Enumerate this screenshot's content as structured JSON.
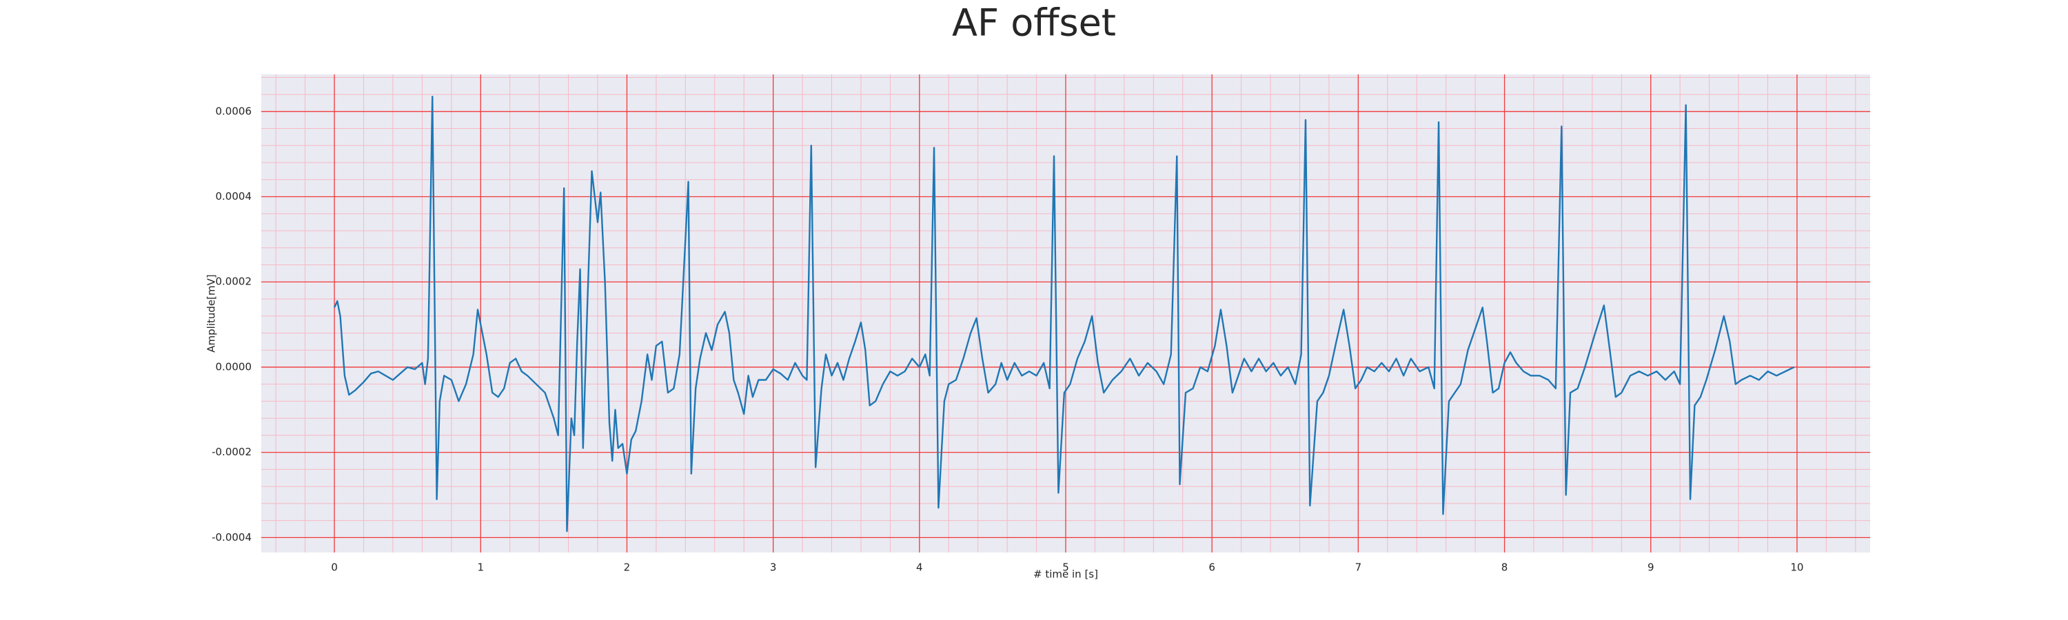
{
  "chart_data": {
    "type": "line",
    "title": "AF offset",
    "xlabel": "# time in [s]",
    "ylabel": "Amplitude[mV]",
    "color": "#1f77b4",
    "background": "#eaeaf2",
    "grid": true,
    "major_grid_color": "#f03a3a",
    "minor_grid_color": "#f6b8c4",
    "minor_xstep": 0.2,
    "minor_ystep": 4e-05,
    "xlim": [
      -0.5,
      10.5
    ],
    "xticks": [
      0,
      1,
      2,
      3,
      4,
      5,
      6,
      7,
      8,
      9,
      10
    ],
    "ylim": [
      -0.000435,
      0.000687
    ],
    "yticks": [
      -0.0004,
      -0.0002,
      {
        "value": 0,
        "label": "0.0000"
      },
      0.0002,
      0.0004,
      0.0006
    ],
    "x": [
      0,
      0.02,
      0.04,
      0.07,
      0.1,
      0.14,
      0.2,
      0.25,
      0.3,
      0.35,
      0.4,
      0.45,
      0.5,
      0.55,
      0.6,
      0.62,
      0.64,
      0.67,
      0.7,
      0.72,
      0.75,
      0.8,
      0.85,
      0.9,
      0.95,
      0.98,
      1.04,
      1.08,
      1.12,
      1.16,
      1.2,
      1.24,
      1.28,
      1.32,
      1.38,
      1.44,
      1.48,
      1.5,
      1.53,
      1.57,
      1.59,
      1.62,
      1.64,
      1.66,
      1.68,
      1.7,
      1.73,
      1.76,
      1.8,
      1.82,
      1.85,
      1.88,
      1.9,
      1.92,
      1.94,
      1.97,
      2.0,
      2.03,
      2.06,
      2.1,
      2.14,
      2.17,
      2.2,
      2.24,
      2.28,
      2.32,
      2.36,
      2.42,
      2.44,
      2.47,
      2.5,
      2.54,
      2.58,
      2.62,
      2.67,
      2.7,
      2.73,
      2.76,
      2.8,
      2.83,
      2.86,
      2.9,
      2.95,
      3.0,
      3.05,
      3.1,
      3.15,
      3.2,
      3.23,
      3.26,
      3.29,
      3.33,
      3.36,
      3.4,
      3.44,
      3.48,
      3.52,
      3.56,
      3.6,
      3.63,
      3.66,
      3.7,
      3.75,
      3.8,
      3.85,
      3.9,
      3.95,
      4.0,
      4.04,
      4.07,
      4.1,
      4.13,
      4.17,
      4.2,
      4.25,
      4.3,
      4.35,
      4.39,
      4.43,
      4.47,
      4.52,
      4.56,
      4.6,
      4.65,
      4.7,
      4.75,
      4.8,
      4.85,
      4.89,
      4.92,
      4.95,
      4.99,
      5.03,
      5.08,
      5.13,
      5.18,
      5.22,
      5.26,
      5.32,
      5.38,
      5.44,
      5.5,
      5.56,
      5.62,
      5.67,
      5.72,
      5.76,
      5.78,
      5.82,
      5.87,
      5.92,
      5.97,
      6.02,
      6.06,
      6.1,
      6.14,
      6.18,
      6.22,
      6.27,
      6.32,
      6.37,
      6.42,
      6.47,
      6.52,
      6.57,
      6.61,
      6.64,
      6.67,
      6.72,
      6.76,
      6.8,
      6.85,
      6.9,
      6.94,
      6.98,
      7.02,
      7.06,
      7.11,
      7.16,
      7.21,
      7.26,
      7.31,
      7.36,
      7.42,
      7.48,
      7.52,
      7.55,
      7.58,
      7.62,
      7.66,
      7.7,
      7.75,
      7.85,
      7.88,
      7.92,
      7.96,
      8.0,
      8.04,
      8.08,
      8.13,
      8.18,
      8.24,
      8.3,
      8.35,
      8.39,
      8.42,
      8.45,
      8.5,
      8.55,
      8.62,
      8.68,
      8.72,
      8.76,
      8.8,
      8.86,
      8.92,
      8.98,
      9.04,
      9.1,
      9.16,
      9.2,
      9.24,
      9.27,
      9.3,
      9.34,
      9.38,
      9.44,
      9.5,
      9.54,
      9.58,
      9.62,
      9.68,
      9.74,
      9.8,
      9.86,
      9.92,
      9.98
    ],
    "values": [
      0.00014,
      0.000155,
      0.00012,
      -2e-05,
      -6.5e-05,
      -5.5e-05,
      -3.5e-05,
      -1.5e-05,
      -1e-05,
      -2e-05,
      -3e-05,
      -1.5e-05,
      0,
      -5e-06,
      1e-05,
      -4e-05,
      2e-05,
      0.000635,
      -0.00031,
      -8e-05,
      -2e-05,
      -3e-05,
      -8e-05,
      -4e-05,
      3e-05,
      0.000135,
      3e-05,
      -6e-05,
      -7e-05,
      -5e-05,
      1e-05,
      2e-05,
      -1e-05,
      -2e-05,
      -4e-05,
      -6e-05,
      -0.0001,
      -0.00012,
      -0.00016,
      0.00042,
      -0.000385,
      -0.00012,
      -0.00016,
      6e-05,
      0.00023,
      -0.00019,
      0.00015,
      0.00046,
      0.00034,
      0.00041,
      0.0002,
      -0.00013,
      -0.00022,
      -0.0001,
      -0.00019,
      -0.00018,
      -0.00025,
      -0.00017,
      -0.00015,
      -8e-05,
      3e-05,
      -3e-05,
      5e-05,
      6e-05,
      -6e-05,
      -5e-05,
      3e-05,
      0.000435,
      -0.00025,
      -5e-05,
      2e-05,
      8e-05,
      4e-05,
      0.0001,
      0.00013,
      8e-05,
      -3e-05,
      -6e-05,
      -0.00011,
      -2e-05,
      -7e-05,
      -3e-05,
      -3e-05,
      -5e-06,
      -1.5e-05,
      -3e-05,
      1e-05,
      -2e-05,
      -3e-05,
      0.00052,
      -0.000235,
      -5e-05,
      3e-05,
      -2e-05,
      1e-05,
      -3e-05,
      2e-05,
      6e-05,
      0.000105,
      4e-05,
      -9e-05,
      -8e-05,
      -4e-05,
      -1e-05,
      -2e-05,
      -1e-05,
      2e-05,
      0,
      3e-05,
      -2e-05,
      0.000515,
      -0.00033,
      -8e-05,
      -4e-05,
      -3e-05,
      2e-05,
      8e-05,
      0.000115,
      2e-05,
      -6e-05,
      -4e-05,
      1e-05,
      -3e-05,
      1e-05,
      -2e-05,
      -1e-05,
      -2e-05,
      1e-05,
      -5e-05,
      0.000495,
      -0.000295,
      -6e-05,
      -4e-05,
      2e-05,
      6e-05,
      0.00012,
      1e-05,
      -6e-05,
      -3e-05,
      -1e-05,
      2e-05,
      -2e-05,
      1e-05,
      -1e-05,
      -4e-05,
      3e-05,
      0.000495,
      -0.000275,
      -6e-05,
      -5e-05,
      0,
      -1e-05,
      5e-05,
      0.000135,
      5e-05,
      -6e-05,
      -2e-05,
      2e-05,
      -1e-05,
      2e-05,
      -1e-05,
      1e-05,
      -2e-05,
      0,
      -4e-05,
      3e-05,
      0.00058,
      -0.000325,
      -8e-05,
      -6e-05,
      -2e-05,
      6e-05,
      0.000135,
      5e-05,
      -5e-05,
      -3e-05,
      0,
      -1e-05,
      1e-05,
      -1e-05,
      2e-05,
      -2e-05,
      2e-05,
      -1e-05,
      0,
      -5e-05,
      0.000575,
      -0.000345,
      -8e-05,
      -6e-05,
      -4e-05,
      4e-05,
      0.00014,
      6e-05,
      -6e-05,
      -5e-05,
      1e-05,
      3.5e-05,
      1e-05,
      -1e-05,
      -2e-05,
      -2e-05,
      -3e-05,
      -5e-05,
      0.000565,
      -0.0003,
      -6e-05,
      -5e-05,
      0,
      8e-05,
      0.000145,
      4e-05,
      -7e-05,
      -6e-05,
      -2e-05,
      -1e-05,
      -2e-05,
      -1e-05,
      -3e-05,
      -1e-05,
      -4e-05,
      0.000615,
      -0.00031,
      -9e-05,
      -7e-05,
      -3e-05,
      4e-05,
      0.00012,
      6e-05,
      -4e-05,
      -3e-05,
      -2e-05,
      -3e-05,
      -1e-05,
      -2e-05,
      -1e-05,
      0
    ]
  }
}
